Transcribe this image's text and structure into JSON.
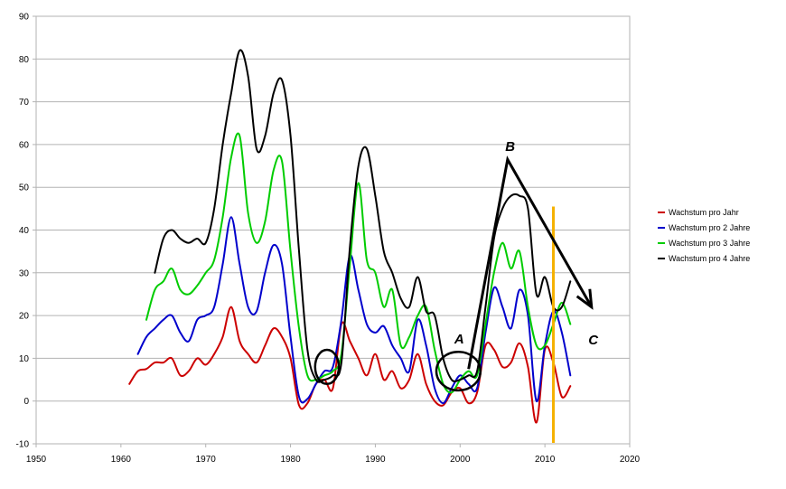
{
  "chart_data": {
    "type": "line",
    "title": "",
    "xlabel": "",
    "ylabel": "",
    "xlim": [
      1950,
      2020
    ],
    "ylim": [
      -10,
      90
    ],
    "x_ticks": [
      "1950",
      "1960",
      "1970",
      "1980",
      "1990",
      "2000",
      "2010",
      "2020"
    ],
    "y_ticks": [
      "-10",
      "0",
      "10",
      "20",
      "30",
      "40",
      "50",
      "60",
      "70",
      "80",
      "90"
    ],
    "grid": "horizontal",
    "legend_position": "right",
    "series": [
      {
        "name": "Wachstum pro Jahr",
        "color": "#cc0000",
        "x": [
          1961,
          1962,
          1963,
          1964,
          1965,
          1966,
          1967,
          1968,
          1969,
          1970,
          1971,
          1972,
          1973,
          1974,
          1975,
          1976,
          1977,
          1978,
          1979,
          1980,
          1981,
          1982,
          1983,
          1984,
          1985,
          1986,
          1987,
          1988,
          1989,
          1990,
          1991,
          1992,
          1993,
          1994,
          1995,
          1996,
          1997,
          1998,
          1999,
          2000,
          2001,
          2002,
          2003,
          2004,
          2005,
          2006,
          2007,
          2008,
          2009,
          2010,
          2011,
          2012,
          2013
        ],
        "y": [
          4,
          7,
          7.5,
          9,
          9,
          10,
          6,
          7,
          10,
          8.5,
          11,
          15,
          22,
          14,
          11,
          9,
          13,
          17,
          15,
          10,
          -1,
          -0.5,
          4,
          5,
          3,
          18,
          14,
          10,
          6,
          11,
          5,
          7,
          3,
          5,
          11,
          4,
          0,
          -1,
          2,
          3,
          -0.5,
          2,
          13,
          12,
          8,
          9,
          13.5,
          8,
          -5,
          12,
          9,
          1,
          3.5
        ]
      },
      {
        "name": "Wachstum pro 2 Jahre",
        "color": "#0000cc",
        "x": [
          1962,
          1963,
          1964,
          1965,
          1966,
          1967,
          1968,
          1969,
          1970,
          1971,
          1972,
          1973,
          1974,
          1975,
          1976,
          1977,
          1978,
          1979,
          1980,
          1981,
          1982,
          1983,
          1984,
          1985,
          1986,
          1987,
          1988,
          1989,
          1990,
          1991,
          1992,
          1993,
          1994,
          1995,
          1996,
          1997,
          1998,
          1999,
          2000,
          2001,
          2002,
          2003,
          2004,
          2005,
          2006,
          2007,
          2008,
          2009,
          2010,
          2011,
          2012,
          2013
        ],
        "y": [
          11,
          15,
          17,
          19,
          20,
          16,
          14,
          19,
          20,
          22,
          32,
          43,
          32,
          22,
          21,
          30,
          36.5,
          32,
          15,
          1,
          0.5,
          4,
          7,
          8,
          19,
          34,
          26,
          18,
          16,
          17.5,
          13,
          10,
          7,
          19,
          13,
          3,
          -0.5,
          3,
          6,
          4,
          3,
          16,
          26.5,
          22,
          17,
          26,
          20,
          0,
          13,
          21,
          16,
          6
        ]
      },
      {
        "name": "Wachstum pro 3 Jahre",
        "color": "#00cc00",
        "x": [
          1963,
          1964,
          1965,
          1966,
          1967,
          1968,
          1969,
          1970,
          1971,
          1972,
          1973,
          1974,
          1975,
          1976,
          1977,
          1978,
          1979,
          1980,
          1981,
          1982,
          1983,
          1984,
          1985,
          1986,
          1987,
          1988,
          1989,
          1990,
          1991,
          1992,
          1993,
          1994,
          1995,
          1996,
          1997,
          1998,
          1999,
          2000,
          2001,
          2002,
          2003,
          2004,
          2005,
          2006,
          2007,
          2008,
          2009,
          2010,
          2011,
          2012,
          2013
        ],
        "y": [
          19,
          26,
          28,
          31,
          26,
          25,
          27,
          30,
          33,
          43,
          57,
          62,
          44,
          37,
          42,
          54,
          56,
          35,
          17,
          6,
          5,
          6,
          7,
          11,
          32,
          51,
          33,
          30,
          22,
          26,
          13,
          15,
          20,
          22,
          12,
          4,
          2,
          5,
          7,
          6,
          18,
          30,
          37,
          31,
          35,
          22,
          13,
          13,
          18,
          23,
          18
        ]
      },
      {
        "name": "Wachstum pro 4 Jahre",
        "color": "#000000",
        "x": [
          1964,
          1965,
          1966,
          1967,
          1968,
          1969,
          1970,
          1971,
          1972,
          1973,
          1974,
          1975,
          1976,
          1977,
          1978,
          1979,
          1980,
          1981,
          1982,
          1983,
          1984,
          1985,
          1986,
          1987,
          1988,
          1989,
          1990,
          1991,
          1992,
          1993,
          1994,
          1995,
          1996,
          1997,
          1998,
          1999,
          2000,
          2001,
          2002,
          2003,
          2004,
          2005,
          2006,
          2007,
          2008,
          2009,
          2010,
          2011,
          2012,
          2013
        ],
        "y": [
          30,
          38,
          40,
          38,
          37,
          38,
          37,
          45,
          60,
          72,
          82,
          76,
          59,
          62,
          72,
          75,
          62,
          35,
          12,
          5,
          5,
          6,
          9,
          36,
          55,
          59,
          48,
          35,
          30,
          24,
          22,
          29,
          21,
          20,
          10,
          5,
          5,
          6,
          7,
          22,
          38,
          45,
          48,
          48,
          45,
          25,
          29,
          22,
          22,
          28
        ]
      }
    ],
    "annotations": [
      {
        "label": "A"
      },
      {
        "label": "B"
      },
      {
        "label": "C"
      }
    ],
    "marker_line": {
      "x": 2011,
      "color": "#f5b100"
    },
    "circles": [
      {
        "x": 1984.3,
        "y": 8,
        "rx_years": 1.4,
        "ry_units": 4
      },
      {
        "x": 1999.8,
        "y": 7,
        "rx_years": 2.6,
        "ry_units": 4.5
      }
    ],
    "arrow": {
      "points": [
        [
          2001,
          7.5
        ],
        [
          2005.6,
          56.5
        ],
        [
          2015.5,
          22
        ]
      ],
      "color": "#000000"
    },
    "annotation_positions": [
      {
        "label": "A",
        "x": 1999.9,
        "y": 13.5
      },
      {
        "label": "B",
        "x": 2005.9,
        "y": 58.5
      },
      {
        "label": "C",
        "x": 2015.7,
        "y": 13.3
      }
    ]
  }
}
